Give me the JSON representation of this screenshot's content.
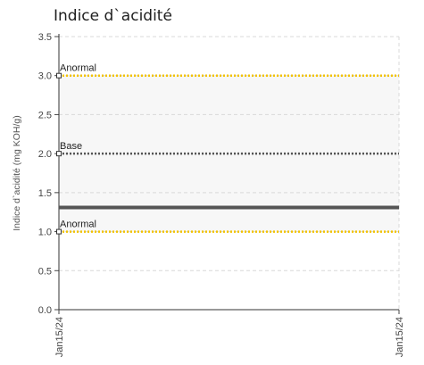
{
  "chart_data": {
    "type": "line",
    "title": "Indice d`acidité",
    "ylabel": "Indice d`acidité (mg KOH/g)",
    "xlabel": "",
    "ylim": [
      0,
      3.5
    ],
    "y_ticks": [
      "0.0",
      "0.5",
      "1.0",
      "1.5",
      "2.0",
      "2.5",
      "3.0",
      "3.5"
    ],
    "x_ticks": [
      "Jan15/24",
      "Jan15/24"
    ],
    "grid": true,
    "shaded_band": [
      1.0,
      3.0
    ],
    "reference_lines": [
      {
        "label": "Anormal",
        "value": 3.0,
        "color": "#f2c200",
        "style": "dotted"
      },
      {
        "label": "Base",
        "value": 2.0,
        "color": "#555555",
        "style": "dotted"
      },
      {
        "label": "Anormal",
        "value": 1.0,
        "color": "#f2c200",
        "style": "dotted"
      }
    ],
    "series": [
      {
        "x": [
          "Jan15/24",
          "Jan15/24"
        ],
        "values": [
          1.31,
          1.31
        ],
        "color": "#555555"
      }
    ]
  }
}
